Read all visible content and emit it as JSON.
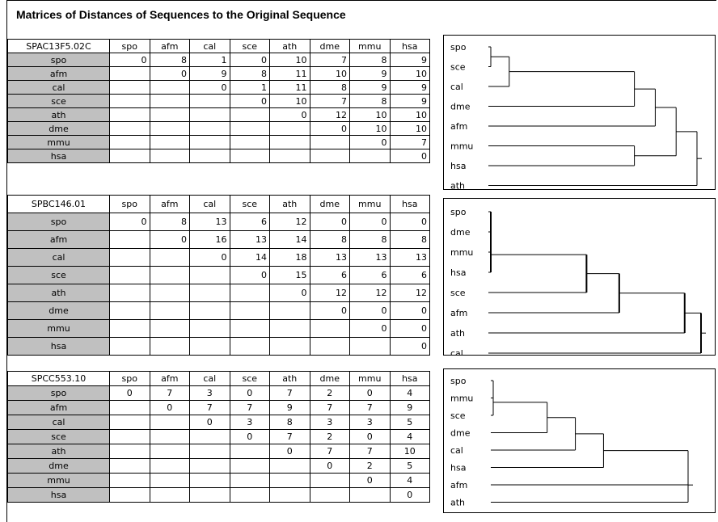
{
  "title": "Matrices of Distances of Sequences to the Original Sequence",
  "matrices": [
    {
      "name": "SPAC13F5.02C",
      "headers": [
        "spo",
        "afm",
        "cal",
        "sce",
        "ath",
        "dme",
        "mmu",
        "hsa"
      ],
      "rows": [
        {
          "label": "spo",
          "values": [
            "0",
            "8",
            "1",
            "0",
            "10",
            "7",
            "8",
            "9"
          ]
        },
        {
          "label": "afm",
          "values": [
            "",
            "0",
            "9",
            "8",
            "11",
            "10",
            "9",
            "10"
          ]
        },
        {
          "label": "cal",
          "values": [
            "",
            "",
            "0",
            "1",
            "11",
            "8",
            "9",
            "9"
          ]
        },
        {
          "label": "sce",
          "values": [
            "",
            "",
            "",
            "0",
            "10",
            "7",
            "8",
            "9"
          ]
        },
        {
          "label": "ath",
          "values": [
            "",
            "",
            "",
            "",
            "0",
            "12",
            "10",
            "10"
          ]
        },
        {
          "label": "dme",
          "values": [
            "",
            "",
            "",
            "",
            "",
            "0",
            "10",
            "10"
          ]
        },
        {
          "label": "mmu",
          "values": [
            "",
            "",
            "",
            "",
            "",
            "",
            "0",
            "7"
          ]
        },
        {
          "label": "hsa",
          "values": [
            "",
            "",
            "",
            "",
            "",
            "",
            "",
            "0"
          ]
        }
      ]
    },
    {
      "name": "SPBC146.01",
      "headers": [
        "spo",
        "afm",
        "cal",
        "sce",
        "ath",
        "dme",
        "mmu",
        "hsa"
      ],
      "rows": [
        {
          "label": "spo",
          "values": [
            "0",
            "8",
            "13",
            "6",
            "12",
            "0",
            "0",
            "0"
          ]
        },
        {
          "label": "afm",
          "values": [
            "",
            "0",
            "16",
            "13",
            "14",
            "8",
            "8",
            "8"
          ]
        },
        {
          "label": "cal",
          "values": [
            "",
            "",
            "0",
            "14",
            "18",
            "13",
            "13",
            "13"
          ]
        },
        {
          "label": "sce",
          "values": [
            "",
            "",
            "",
            "0",
            "15",
            "6",
            "6",
            "6"
          ]
        },
        {
          "label": "ath",
          "values": [
            "",
            "",
            "",
            "",
            "0",
            "12",
            "12",
            "12"
          ]
        },
        {
          "label": "dme",
          "values": [
            "",
            "",
            "",
            "",
            "",
            "0",
            "0",
            "0"
          ]
        },
        {
          "label": "mmu",
          "values": [
            "",
            "",
            "",
            "",
            "",
            "",
            "0",
            "0"
          ]
        },
        {
          "label": "hsa",
          "values": [
            "",
            "",
            "",
            "",
            "",
            "",
            "",
            "0"
          ]
        }
      ]
    },
    {
      "name": "SPCC553.10",
      "headers": [
        "spo",
        "afm",
        "cal",
        "sce",
        "ath",
        "dme",
        "mmu",
        "hsa"
      ],
      "rows": [
        {
          "label": "spo",
          "values": [
            "0",
            "7",
            "3",
            "0",
            "7",
            "2",
            "0",
            "4"
          ]
        },
        {
          "label": "afm",
          "values": [
            "",
            "0",
            "7",
            "7",
            "9",
            "7",
            "7",
            "9"
          ]
        },
        {
          "label": "cal",
          "values": [
            "",
            "",
            "0",
            "3",
            "8",
            "3",
            "3",
            "5"
          ]
        },
        {
          "label": "sce",
          "values": [
            "",
            "",
            "",
            "0",
            "7",
            "2",
            "0",
            "4"
          ]
        },
        {
          "label": "ath",
          "values": [
            "",
            "",
            "",
            "",
            "0",
            "7",
            "7",
            "10"
          ]
        },
        {
          "label": "dme",
          "values": [
            "",
            "",
            "",
            "",
            "",
            "0",
            "2",
            "5"
          ]
        },
        {
          "label": "mmu",
          "values": [
            "",
            "",
            "",
            "",
            "",
            "",
            "0",
            "4"
          ]
        },
        {
          "label": "hsa",
          "values": [
            "",
            "",
            "",
            "",
            "",
            "",
            "",
            "0"
          ]
        }
      ]
    }
  ],
  "trees": [
    {
      "leaves": [
        "spo",
        "sce",
        "cal",
        "dme",
        "afm",
        "mmu",
        "hsa",
        "ath"
      ],
      "nodes": [
        {
          "a": "spo",
          "b": "sce",
          "h": 0
        },
        {
          "a": "spo+sce",
          "b": "cal",
          "h": 1
        },
        {
          "a": "spo+sce+cal",
          "b": "dme",
          "h": 7
        },
        {
          "a": "mmu",
          "b": "hsa",
          "h": 7
        },
        {
          "a": "spo+sce+cal+dme",
          "b": "afm",
          "h": 8
        },
        {
          "a": "spo+sce+cal+dme+afm",
          "b": "mmu+hsa",
          "h": 9
        },
        {
          "a": "rest",
          "b": "ath",
          "h": 10
        }
      ]
    },
    {
      "leaves": [
        "spo",
        "dme",
        "mmu",
        "hsa",
        "sce",
        "afm",
        "ath",
        "cal"
      ],
      "nodes": [
        {
          "a": "spo",
          "b": "dme",
          "h": 0
        },
        {
          "a": "spo+dme",
          "b": "mmu",
          "h": 0
        },
        {
          "a": "spo+dme+mmu",
          "b": "hsa",
          "h": 0
        },
        {
          "a": "spo+dme+mmu+hsa",
          "b": "sce",
          "h": 6
        },
        {
          "a": "spo+dme+mmu+hsa+sce",
          "b": "afm",
          "h": 8
        },
        {
          "a": "spo+dme+mmu+hsa+sce+afm",
          "b": "ath",
          "h": 12
        },
        {
          "a": "rest",
          "b": "cal",
          "h": 13
        }
      ]
    },
    {
      "leaves": [
        "spo",
        "mmu",
        "sce",
        "dme",
        "cal",
        "hsa",
        "afm",
        "ath"
      ],
      "nodes": [
        {
          "a": "spo",
          "b": "mmu",
          "h": 0
        },
        {
          "a": "spo+mmu",
          "b": "sce",
          "h": 0
        },
        {
          "a": "spo+mmu+sce",
          "b": "dme",
          "h": 2
        },
        {
          "a": "spo+mmu+sce+dme",
          "b": "cal",
          "h": 3
        },
        {
          "a": "spo+mmu+sce+dme+cal",
          "b": "hsa",
          "h": 4
        },
        {
          "a": "spo+mmu+sce+dme+cal+hsa",
          "b": "afm",
          "h": 7
        },
        {
          "a": "rest",
          "b": "ath",
          "h": 7
        }
      ]
    }
  ]
}
